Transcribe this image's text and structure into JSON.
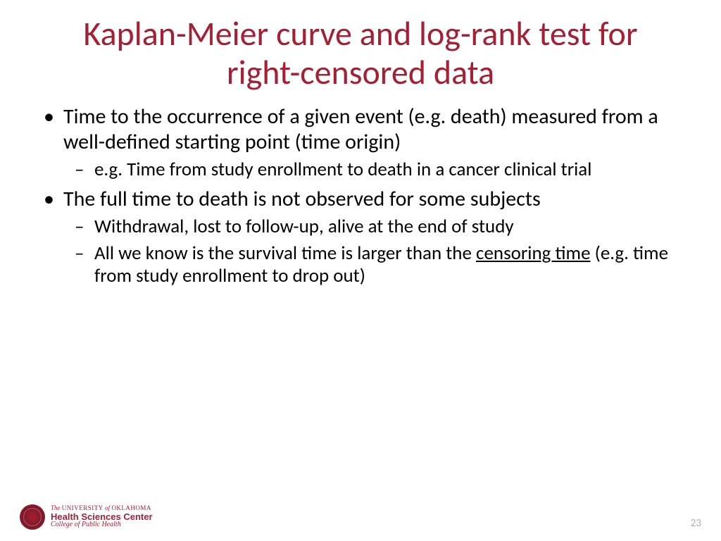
{
  "title": "Kaplan-Meier curve and log-rank test for right-censored data",
  "bullets": {
    "b1": "Time to the occurrence of a given event (e.g. death) measured from a well-defined starting point (time origin)",
    "b1_sub1": "e.g. Time from study enrollment to death in a cancer clinical trial",
    "b2": "The full time to death is not observed for some subjects",
    "b2_sub1": "Withdrawal, lost to follow-up, alive at the end of study",
    "b2_sub2_a": "All we know is the survival time is larger than the ",
    "b2_sub2_u": "censoring time",
    "b2_sub2_b": " (e.g. time from study enrollment to drop out)"
  },
  "footer": {
    "logo_line1_italic": "The ",
    "logo_line1_caps": "UNIVERSITY ",
    "logo_line1_italic2": "of ",
    "logo_line1_caps2": "OKLAHOMA",
    "logo_line2": "Health Sciences Center",
    "logo_line3": "College of Public Health",
    "page_number": "23"
  },
  "colors": {
    "title": "#a32035",
    "body": "#000000",
    "page_num": "#b0b0b0",
    "background": "#ffffff"
  },
  "typography": {
    "title_fontsize": 48,
    "body_fontsize": 30,
    "sub_fontsize": 27
  }
}
